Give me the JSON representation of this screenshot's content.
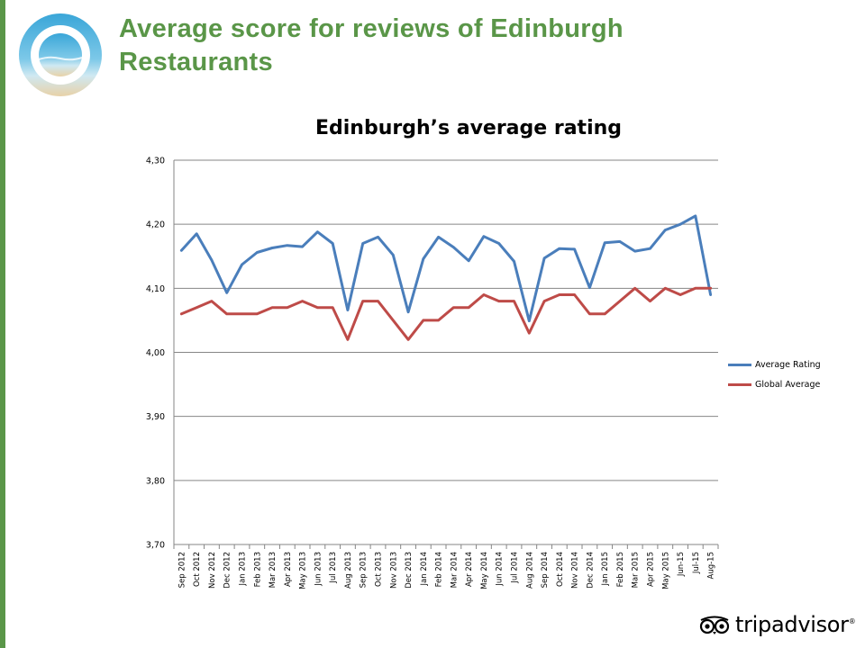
{
  "slide": {
    "title": "Average score for reviews of Edinburgh Restaurants"
  },
  "colors": {
    "accent": "#5a9648",
    "average_rating": "#4a7ebb",
    "global_average": "#be4b48"
  },
  "icons": {
    "logo": "circle-beach-logo",
    "brand": "tripadvisor-owl-logo"
  },
  "brand": {
    "name": "tripadvisor",
    "mark": "®"
  },
  "chart_data": {
    "type": "line",
    "title": "Edinburgh’s average rating",
    "xlabel": "",
    "ylabel": "",
    "ylim": [
      3.7,
      4.3
    ],
    "yticks": [
      "4,30",
      "4,20",
      "4,10",
      "4,00",
      "3,90",
      "3,80",
      "3,70"
    ],
    "ytick_values": [
      4.3,
      4.2,
      4.1,
      4.0,
      3.9,
      3.8,
      3.7
    ],
    "grid": true,
    "legend": "right",
    "categories": [
      "Sep 2012",
      "Oct 2012",
      "Nov 2012",
      "Dec 2012",
      "Jan 2013",
      "Feb 2013",
      "Mar 2013",
      "Apr 2013",
      "May 2013",
      "Jun 2013",
      "Jul 2013",
      "Aug 2013",
      "Sep 2013",
      "Oct 2013",
      "Nov 2013",
      "Dec 2013",
      "Jan 2014",
      "Feb 2014",
      "Mar 2014",
      "Apr 2014",
      "May 2014",
      "Jun 2014",
      "Jul 2014",
      "Aug 2014",
      "Sep 2014",
      "Oct 2014",
      "Nov 2014",
      "Dec 2014",
      "Jan 2015",
      "Feb 2015",
      "Mar 2015",
      "Apr 2015",
      "May 2015",
      "Jun-15",
      "Jul-15",
      "Aug-15"
    ],
    "series": [
      {
        "name": "Average Rating",
        "color": "#4a7ebb",
        "values": [
          4.159,
          4.185,
          4.144,
          4.093,
          4.137,
          4.156,
          4.163,
          4.167,
          4.165,
          4.188,
          4.17,
          4.066,
          4.17,
          4.18,
          4.152,
          4.063,
          4.146,
          4.18,
          4.164,
          4.143,
          4.181,
          4.17,
          4.142,
          4.049,
          4.147,
          4.162,
          4.161,
          4.101,
          4.171,
          4.173,
          4.158,
          4.162,
          4.191,
          4.2,
          4.213,
          4.09
        ]
      },
      {
        "name": "Global Average",
        "color": "#be4b48",
        "values": [
          4.06,
          4.07,
          4.08,
          4.06,
          4.06,
          4.06,
          4.07,
          4.07,
          4.08,
          4.07,
          4.07,
          4.02,
          4.08,
          4.08,
          4.05,
          4.02,
          4.05,
          4.05,
          4.07,
          4.07,
          4.09,
          4.08,
          4.08,
          4.03,
          4.08,
          4.09,
          4.09,
          4.06,
          4.06,
          4.08,
          4.1,
          4.08,
          4.1,
          4.09,
          4.1,
          4.1
        ]
      }
    ]
  }
}
